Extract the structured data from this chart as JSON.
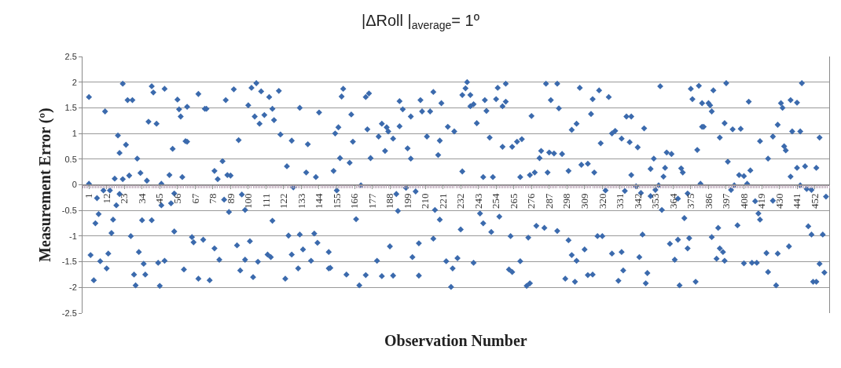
{
  "chart_data": {
    "type": "scatter",
    "title": "|ΔRoll |$_{average}$= 1º",
    "xlabel": "Observation Number",
    "ylabel": "Measurement Error (º)",
    "xlim": [
      -3,
      461
    ],
    "xticks": [
      1,
      12,
      23,
      34,
      45,
      56,
      67,
      78,
      89,
      100,
      111,
      122,
      133,
      144,
      155,
      166,
      177,
      188,
      199,
      210,
      221,
      232,
      243,
      254,
      265,
      276,
      287,
      298,
      309,
      320,
      331,
      342,
      353,
      364,
      375,
      386,
      397,
      408,
      419,
      430,
      441,
      452
    ],
    "ylim": [
      -2.5,
      2.5
    ],
    "yticks": [
      -2.5,
      -2,
      -1.5,
      -1,
      -0.5,
      0,
      0.5,
      1,
      1.5,
      2,
      2.5
    ],
    "grid": "y",
    "marker": "diamond",
    "series": [
      {
        "color": "#3b6aad",
        "x": [
          1,
          1,
          2,
          4,
          5,
          6,
          7,
          8,
          10,
          11,
          12,
          13,
          14,
          15,
          16,
          17,
          18,
          19,
          20,
          20,
          22,
          22,
          24,
          25,
          26,
          27,
          28,
          29,
          30,
          31,
          32,
          33,
          34,
          35,
          36,
          37,
          38,
          40,
          40,
          41,
          43,
          44,
          45,
          46,
          46,
          48,
          48,
          51,
          52,
          53,
          54,
          54,
          56,
          57,
          58,
          59,
          60,
          61,
          62,
          62,
          69,
          65,
          66,
          69,
          72,
          73,
          74,
          76,
          79,
          79,
          81,
          82,
          84,
          85,
          86,
          87,
          88,
          89,
          91,
          93,
          94,
          95,
          96,
          98,
          98,
          100,
          101,
          102,
          103,
          104,
          105,
          106,
          107,
          108,
          110,
          112,
          113,
          114,
          115,
          115,
          116,
          119,
          120,
          123,
          124,
          125,
          127,
          127,
          128,
          131,
          132,
          132,
          134,
          136,
          137,
          139,
          141,
          142,
          143,
          144,
          150,
          150,
          151,
          153,
          154,
          155,
          156,
          157,
          158,
          159,
          161,
          163,
          164,
          165,
          167,
          169,
          170,
          173,
          173,
          175,
          174,
          176,
          180,
          181,
          183,
          183,
          185,
          186,
          187,
          188,
          190,
          190,
          192,
          193,
          194,
          194,
          196,
          198,
          199,
          201,
          201,
          202,
          204,
          206,
          206,
          207,
          208,
          211,
          213,
          215,
          215,
          216,
          218,
          219,
          220,
          219,
          223,
          224,
          226,
          227,
          228,
          230,
          232,
          233,
          233,
          235,
          236,
          238,
          238,
          240,
          240,
          242,
          244,
          246,
          246,
          247,
          248,
          250,
          251,
          252,
          254,
          255,
          256,
          258,
          258,
          260,
          260,
          263,
          262,
          264,
          264,
          267,
          269,
          269,
          270,
          273,
          274,
          275,
          275,
          276,
          278,
          279,
          281,
          282,
          284,
          285,
          286,
          287,
          288,
          290,
          292,
          292,
          293,
          295,
          297,
          299,
          299,
          301,
          301,
          303,
          304,
          304,
          306,
          307,
          309,
          311,
          311,
          313,
          314,
          314,
          315,
          317,
          318,
          319,
          320,
          322,
          324,
          326,
          326,
          328,
          330,
          332,
          332,
          333,
          334,
          335,
          337,
          338,
          338,
          341,
          342,
          343,
          344,
          345,
          346,
          347,
          348,
          350,
          350,
          352,
          353,
          355,
          356,
          357,
          358,
          359,
          360,
          362,
          363,
          365,
          367,
          367,
          368,
          369,
          370,
          371,
          373,
          373,
          374,
          375,
          376,
          379,
          378,
          380,
          381,
          382,
          382,
          383,
          387,
          386,
          388,
          388,
          389,
          391,
          392,
          393,
          393,
          395,
          396,
          396,
          397,
          398,
          400,
          401,
          402,
          404,
          405,
          406,
          408,
          408,
          410,
          411,
          412,
          413,
          415,
          416,
          417,
          418,
          418,
          422,
          423,
          423,
          426,
          426,
          428,
          429,
          429,
          431,
          432,
          433,
          434,
          436,
          437,
          437,
          438,
          441,
          441,
          443,
          444,
          443,
          446,
          447,
          448,
          450,
          450,
          451,
          453,
          453,
          455,
          455,
          457,
          458,
          459
        ],
        "values": [
          1.71,
          0.02,
          -1.37,
          -1.86,
          -0.75,
          -0.26,
          -0.57,
          -1.49,
          -0.11,
          1.43,
          -1.63,
          -1.34,
          -0.11,
          -0.94,
          -0.68,
          0.12,
          -0.4,
          0.96,
          -0.18,
          0.62,
          0.11,
          1.97,
          0.78,
          1.65,
          0.18,
          -1.0,
          1.65,
          -1.75,
          -1.96,
          0.51,
          -1.31,
          0.23,
          -0.69,
          -1.54,
          -1.75,
          0.08,
          1.23,
          -0.69,
          1.92,
          1.8,
          1.19,
          -1.52,
          -1.97,
          -0.4,
          0.02,
          1.87,
          -1.48,
          0.19,
          -0.36,
          0.7,
          -0.91,
          -0.17,
          1.66,
          1.47,
          1.33,
          0.15,
          -1.65,
          0.85,
          0.84,
          1.52,
          -1.83,
          -1.02,
          -1.12,
          1.77,
          -1.07,
          1.48,
          1.48,
          -1.86,
          -1.24,
          0.27,
          0.11,
          -1.46,
          0.46,
          -0.29,
          1.65,
          0.19,
          -0.53,
          0.18,
          1.86,
          -1.18,
          0.87,
          -1.67,
          -0.19,
          -1.46,
          -0.49,
          1.55,
          -1.1,
          1.89,
          -1.8,
          1.33,
          1.98,
          -1.5,
          1.19,
          1.82,
          1.36,
          -1.36,
          1.71,
          -1.41,
          -0.7,
          1.48,
          1.26,
          1.83,
          0.98,
          -1.83,
          0.36,
          -0.99,
          0.86,
          -1.36,
          -0.05,
          -1.63,
          -0.97,
          1.5,
          -1.26,
          0.24,
          0.79,
          -1.48,
          -0.95,
          0.15,
          -1.13,
          1.41,
          -1.63,
          -1.31,
          -1.62,
          0.27,
          1.0,
          -0.11,
          1.12,
          0.52,
          1.72,
          1.87,
          -1.75,
          0.43,
          1.37,
          0.84,
          -0.67,
          -1.96,
          -0.01,
          -1.76,
          1.71,
          1.78,
          1.08,
          0.52,
          -1.48,
          0.94,
          -1.78,
          1.19,
          0.66,
          1.12,
          1.04,
          -1.2,
          -1.77,
          0.9,
          -0.18,
          -0.51,
          1.63,
          1.14,
          1.47,
          -0.06,
          0.71,
          0.51,
          1.33,
          -1.41,
          -0.13,
          -1.14,
          -1.77,
          1.65,
          1.43,
          0.94,
          1.43,
          -1.05,
          1.81,
          -0.49,
          0.58,
          0.86,
          1.59,
          -0.68,
          -1.49,
          1.13,
          -1.99,
          -1.63,
          1.04,
          -1.43,
          -0.87,
          1.75,
          0.26,
          1.88,
          2.0,
          1.75,
          1.53,
          1.57,
          -1.52,
          1.2,
          -0.56,
          -0.75,
          0.15,
          1.65,
          1.44,
          0.92,
          -0.92,
          0.15,
          1.67,
          1.89,
          -0.62,
          0.74,
          1.53,
          1.97,
          1.62,
          -1.0,
          -1.65,
          -1.7,
          0.74,
          0.84,
          -1.49,
          0.15,
          0.89,
          -1.97,
          -1.03,
          -1.92,
          0.19,
          1.34,
          0.24,
          -0.8,
          0.52,
          0.66,
          -0.84,
          1.97,
          0.24,
          0.63,
          1.65,
          0.61,
          -0.9,
          1.97,
          1.49,
          0.6,
          -1.83,
          -1.08,
          0.27,
          -1.37,
          1.07,
          -1.89,
          -1.48,
          1.19,
          1.89,
          0.39,
          -1.26,
          -1.76,
          0.41,
          1.38,
          -1.75,
          1.67,
          0.24,
          -1.0,
          1.84,
          0.81,
          -1.0,
          -0.11,
          1.71,
          -1.34,
          1.0,
          1.05,
          -1.87,
          -1.31,
          0.9,
          -1.67,
          -0.12,
          1.33,
          0.83,
          1.33,
          0.19,
          -0.03,
          0.73,
          -1.41,
          -0.16,
          -0.97,
          1.1,
          -1.92,
          -1.72,
          0.31,
          -0.22,
          0.51,
          -0.1,
          -0.01,
          1.92,
          -0.49,
          0.16,
          0.33,
          0.63,
          -1.15,
          0.6,
          -1.46,
          -1.07,
          -0.27,
          -1.96,
          0.32,
          0.24,
          -0.65,
          -0.17,
          -1.24,
          -1.04,
          1.87,
          1.67,
          0.68,
          -1.89,
          1.93,
          0.02,
          1.13,
          1.59,
          1.13,
          1.55,
          1.59,
          1.43,
          -1.02,
          1.84,
          -1.44,
          -0.84,
          -1.24,
          0.92,
          -1.31,
          -1.48,
          1.2,
          1.98,
          0.45,
          -0.1,
          1.08,
          -0.01,
          -0.79,
          0.19,
          1.09,
          -1.53,
          0.17,
          0.02,
          1.62,
          0.28,
          -1.52,
          -0.32,
          -1.52,
          -0.56,
          -0.68,
          0.85,
          -1.33,
          -1.7,
          0.51,
          0.94,
          -0.31,
          -1.96,
          1.17,
          -1.34,
          1.59,
          1.5,
          0.75,
          0.67,
          -1.2,
          0.16,
          1.65,
          1.04,
          0.33,
          1.6,
          1.04,
          1.98,
          -0.01,
          0.36,
          -0.08,
          -0.81,
          -0.97,
          -0.1,
          -1.89,
          0.33,
          -1.89,
          -1.54,
          0.92,
          -0.97,
          -1.71,
          -0.23
        ]
      }
    ]
  }
}
